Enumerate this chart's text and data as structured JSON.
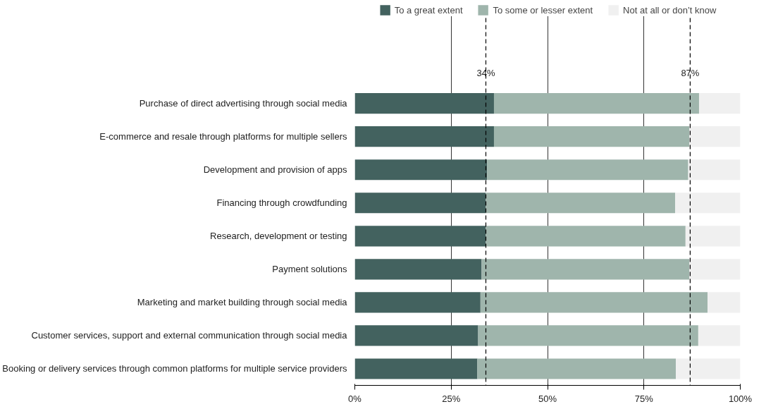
{
  "chart_data": {
    "type": "bar",
    "orientation": "horizontal",
    "stacked": true,
    "categories": [
      "Purchase of direct advertising through social media",
      "E-commerce and resale through platforms for multiple sellers",
      "Development and provision of apps",
      "Financing through crowdfunding",
      "Research, development or testing",
      "Payment solutions",
      "Marketing and market building through social media",
      "Customer services, support and external communication through social media",
      "Booking or delivery services through common platforms for multiple service providers"
    ],
    "series": [
      {
        "name": "To a great extent",
        "color": "#43625f",
        "values": [
          36.1,
          36.1,
          34.3,
          34.0,
          34.0,
          32.9,
          32.6,
          32.0,
          31.8
        ]
      },
      {
        "name": "To some or lesser extent",
        "color": "#9fb5ac",
        "values": [
          53.2,
          50.7,
          52.2,
          49.1,
          51.8,
          53.9,
          58.9,
          57.1,
          51.5
        ]
      },
      {
        "name": "Not at all or don’t know",
        "color": "#f0f0f0",
        "values": [
          10.7,
          13.2,
          13.5,
          16.9,
          14.2,
          13.2,
          8.5,
          10.9,
          16.7
        ]
      }
    ],
    "xlim": [
      0,
      100
    ],
    "xticks": [
      {
        "value": 0,
        "label": "0%"
      },
      {
        "value": 25,
        "label": "25%"
      },
      {
        "value": 50,
        "label": "50%"
      },
      {
        "value": 75,
        "label": "75%"
      },
      {
        "value": 100,
        "label": "100%"
      }
    ],
    "ref_lines": [
      {
        "axis": "x",
        "value": 34,
        "label": "34%",
        "color": "#000000",
        "line_style": "dashed"
      },
      {
        "axis": "x",
        "value": 87,
        "label": "87%",
        "color": "#000000",
        "line_style": "dashed"
      }
    ],
    "grid": "x",
    "legend": "top"
  }
}
